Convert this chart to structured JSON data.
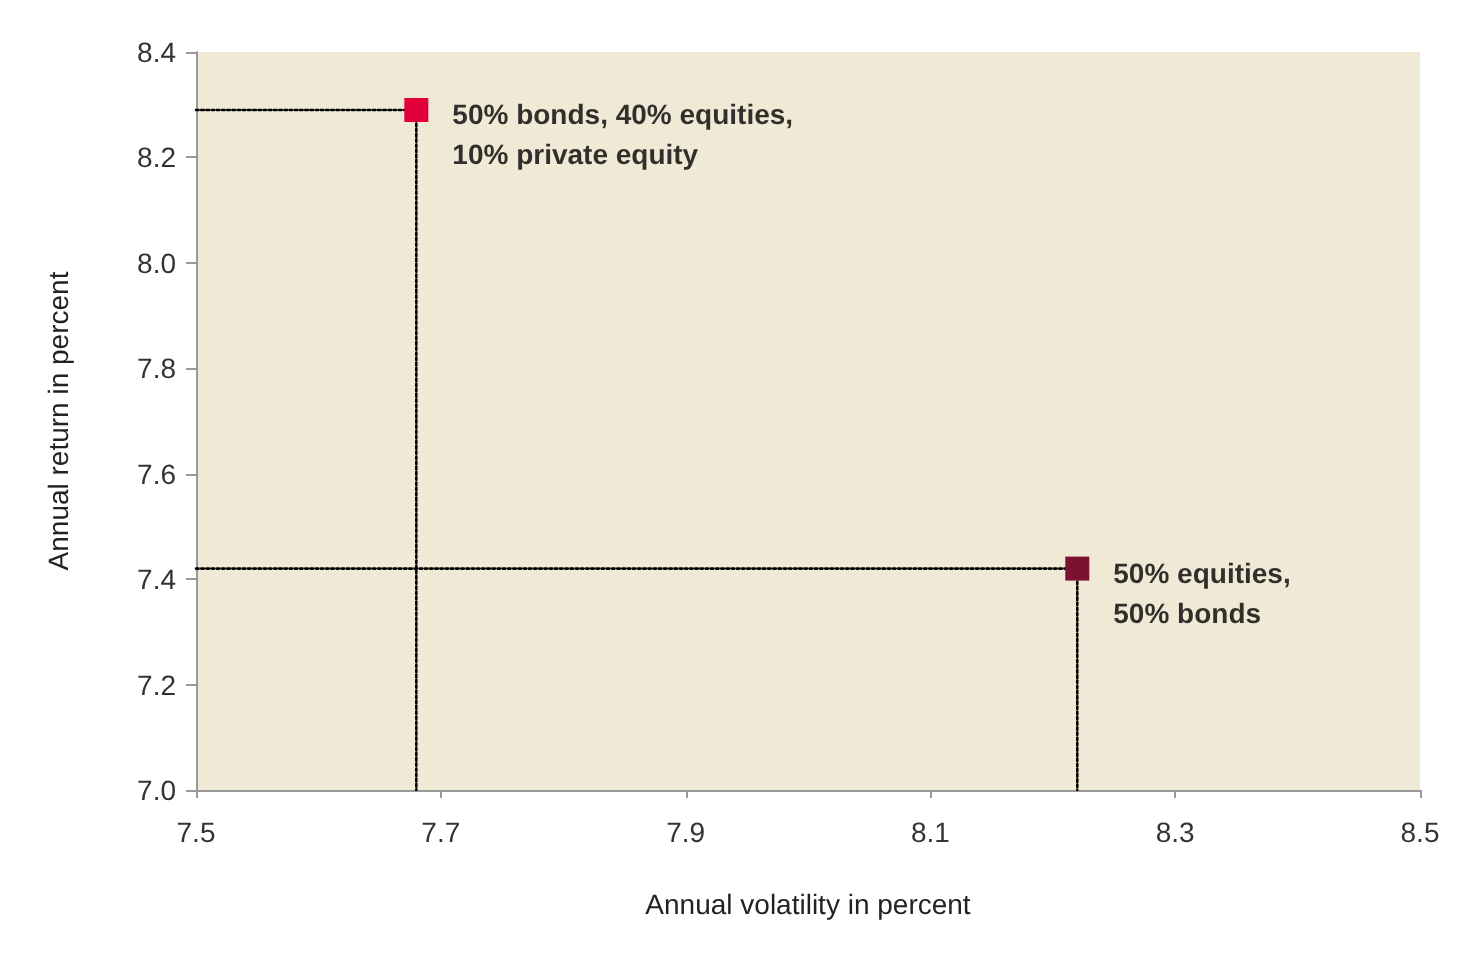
{
  "chart_data": {
    "type": "scatter",
    "xlabel": "Annual volatility in percent",
    "ylabel": "Annual return in percent",
    "xlim": [
      7.5,
      8.5
    ],
    "xticks": [
      7.5,
      7.7,
      7.9,
      8.1,
      8.3,
      8.5
    ],
    "ylim": [
      7.0,
      8.4
    ],
    "yticks": [
      {
        "value": 7.0,
        "label": "7.0"
      },
      7.2,
      7.4,
      7.6,
      7.8,
      {
        "value": 8.0,
        "label": "8.0"
      },
      8.2,
      8.4
    ],
    "grid": false,
    "marker": "square",
    "series": [
      {
        "type": "line",
        "x": [
          7.5,
          7.68,
          7.68
        ],
        "values": [
          8.29,
          8.29,
          7.0
        ],
        "color": "#000000",
        "line_style": "dotted",
        "marker": "none"
      },
      {
        "type": "line",
        "x": [
          7.5,
          8.22,
          8.22
        ],
        "values": [
          7.42,
          7.42,
          7.0
        ],
        "color": "#000000",
        "line_style": "dotted",
        "marker": "none"
      },
      {
        "x": [
          7.68,
          8.22
        ],
        "values": [
          8.29,
          7.42
        ],
        "colors": [
          "#e2003c",
          "#7b1232"
        ]
      }
    ],
    "annotations": [
      {
        "text": "50% bonds, 40% equities,\n10% private equity",
        "x": 7.68,
        "y": 8.29
      },
      {
        "text": "50% equities,\n50% bonds",
        "x": 8.22,
        "y": 7.42
      }
    ]
  }
}
